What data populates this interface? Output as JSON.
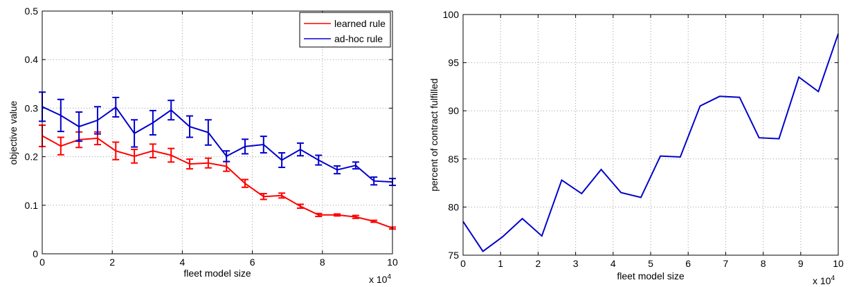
{
  "chart_data": [
    {
      "type": "line",
      "title": "",
      "xlabel": "fleet model size",
      "ylabel": "objective value",
      "x_multiplier_label": "x 10",
      "x_multiplier_exp": "4",
      "xlim": [
        0,
        10
      ],
      "ylim": [
        0,
        0.5
      ],
      "xticks": [
        "0",
        "2",
        "4",
        "6",
        "8",
        "10"
      ],
      "yticks": [
        "0",
        "0.1",
        "0.2",
        "0.3",
        "0.4",
        "0.5"
      ],
      "grid": true,
      "legend_position": "top-right",
      "error_bars": true,
      "x": [
        0,
        0.53,
        1.05,
        1.58,
        2.1,
        2.63,
        3.16,
        3.68,
        4.21,
        4.74,
        5.26,
        5.79,
        6.32,
        6.84,
        7.37,
        7.89,
        8.42,
        8.95,
        9.47,
        10
      ],
      "series": [
        {
          "name": "learned rule",
          "color": "#ff0000",
          "values": [
            0.243,
            0.222,
            0.235,
            0.238,
            0.212,
            0.201,
            0.212,
            0.203,
            0.185,
            0.187,
            0.18,
            0.145,
            0.118,
            0.12,
            0.098,
            0.08,
            0.08,
            0.076,
            0.067,
            0.053
          ],
          "errors": [
            0.022,
            0.018,
            0.016,
            0.013,
            0.018,
            0.014,
            0.014,
            0.014,
            0.01,
            0.01,
            0.01,
            0.008,
            0.006,
            0.005,
            0.004,
            0.003,
            0.002,
            0.003,
            0.002,
            0.002
          ]
        },
        {
          "name": "ad-hoc rule",
          "color": "#0000cc",
          "values": [
            0.303,
            0.285,
            0.262,
            0.275,
            0.302,
            0.248,
            0.27,
            0.296,
            0.262,
            0.25,
            0.201,
            0.221,
            0.225,
            0.193,
            0.215,
            0.193,
            0.173,
            0.182,
            0.15,
            0.148
          ],
          "errors": [
            0.03,
            0.033,
            0.03,
            0.028,
            0.02,
            0.028,
            0.025,
            0.02,
            0.022,
            0.026,
            0.011,
            0.015,
            0.017,
            0.015,
            0.013,
            0.01,
            0.008,
            0.007,
            0.008,
            0.007
          ]
        }
      ]
    },
    {
      "type": "line",
      "title": "",
      "xlabel": "fleet model size",
      "ylabel": "percent of contract fulfilled",
      "x_multiplier_label": "x 10",
      "x_multiplier_exp": "4",
      "xlim": [
        0,
        10
      ],
      "ylim": [
        75,
        100
      ],
      "xticks": [
        "0",
        "1",
        "2",
        "3",
        "4",
        "5",
        "6",
        "7",
        "8",
        "9",
        "10"
      ],
      "yticks": [
        "75",
        "80",
        "85",
        "90",
        "95",
        "100"
      ],
      "grid": true,
      "x": [
        0,
        0.53,
        1.05,
        1.58,
        2.1,
        2.63,
        3.16,
        3.68,
        4.21,
        4.74,
        5.26,
        5.79,
        6.32,
        6.84,
        7.37,
        7.89,
        8.42,
        8.95,
        9.47,
        10
      ],
      "series": [
        {
          "color": "#0000cc",
          "values": [
            78.5,
            75.4,
            76.9,
            78.8,
            77.0,
            82.8,
            81.4,
            83.9,
            81.5,
            81.0,
            85.3,
            85.2,
            90.5,
            91.5,
            91.4,
            87.2,
            87.1,
            93.5,
            92.0,
            98.0
          ]
        }
      ]
    }
  ]
}
